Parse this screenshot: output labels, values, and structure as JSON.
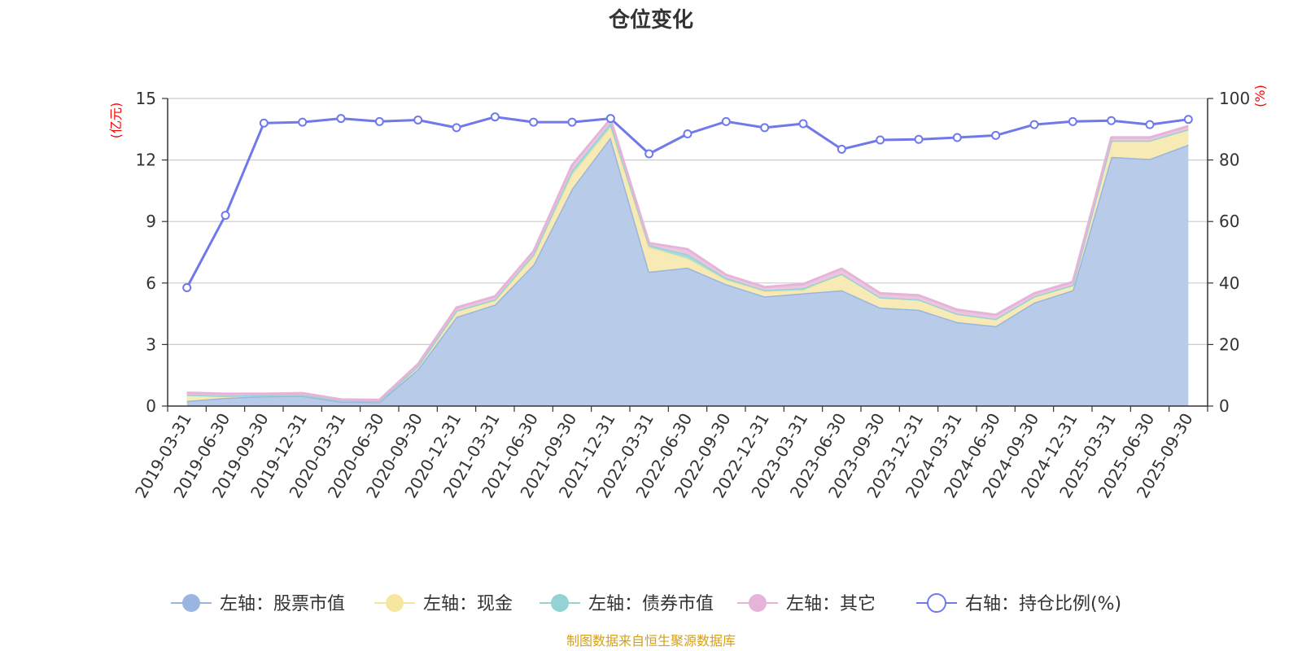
{
  "chart_data": {
    "type": "area",
    "title": "仓位变化",
    "left_axis": {
      "unit": "(亿元)",
      "ylim": [
        0,
        15
      ],
      "ticks": [
        "0",
        "3",
        "6",
        "9",
        "12",
        "15"
      ]
    },
    "right_axis": {
      "unit": "(%)",
      "ylim": [
        0,
        100
      ],
      "ticks": [
        "0",
        "20",
        "40",
        "60",
        "80",
        "100"
      ]
    },
    "grid": true,
    "legend_position": "bottom",
    "x_tick_labels": [
      "2019-03-31",
      "2019-06-30",
      "2019-09-30",
      "2019-12-31",
      "2020-03-31",
      "2020-06-30",
      "2020-09-30",
      "2020-12-31",
      "2021-03-31",
      "2021-06-30",
      "2021-09-30",
      "2021-12-31",
      "2022-03-31",
      "2022-06-30",
      "2022-09-30",
      "2022-12-31",
      "2023-03-31",
      "2023-06-30",
      "2023-09-30",
      "2023-12-31",
      "2024-03-31",
      "2024-06-30",
      "2024-09-30",
      "2024-12-31",
      "2025-03-31",
      "2025-06-30",
      "2025-09-30"
    ],
    "categories": [
      "2019-03-31",
      "2019-06-30",
      "2019-09-30",
      "2019-12-31",
      "2020-03-31",
      "2020-06-30",
      "2020-09-30",
      "2020-12-31",
      "2021-03-31",
      "2021-06-30",
      "2021-09-30",
      "2021-12-31",
      "2022-03-31",
      "2022-06-30",
      "2022-09-30",
      "2022-12-31",
      "2023-03-31",
      "2023-06-30",
      "2023-09-30",
      "2023-12-31",
      "2024-03-31",
      "2024-06-30",
      "2024-09-30",
      "2024-12-31",
      "2025-03-31",
      "2025-06-30",
      "2025-09-30"
    ],
    "series": [
      {
        "name": "左轴：股票市值",
        "axis": "left",
        "stack": true,
        "color": "#9ab5e0",
        "fill": "#b8cbe9",
        "values": [
          0.25,
          0.4,
          0.48,
          0.5,
          0.22,
          0.2,
          1.8,
          4.35,
          4.95,
          6.9,
          10.6,
          13.1,
          6.55,
          6.75,
          5.95,
          5.35,
          5.5,
          5.65,
          4.8,
          4.7,
          4.1,
          3.9,
          5.05,
          5.65,
          12.15,
          12.05,
          12.75
        ]
      },
      {
        "name": "左轴：现金",
        "axis": "left",
        "stack": true,
        "color": "#f6e6a0",
        "fill": "#f7eab4",
        "values": [
          0.3,
          0.1,
          0.05,
          0.05,
          0.05,
          0.05,
          0.15,
          0.3,
          0.2,
          0.4,
          0.7,
          0.5,
          1.2,
          0.45,
          0.2,
          0.25,
          0.15,
          0.8,
          0.5,
          0.5,
          0.4,
          0.35,
          0.3,
          0.25,
          0.8,
          0.9,
          0.75
        ]
      },
      {
        "name": "左轴：债券市值",
        "axis": "left",
        "stack": true,
        "color": "#93d3d4",
        "fill": "#a8dcdc",
        "values": [
          0,
          0,
          0,
          0,
          0,
          0,
          0,
          0,
          0.05,
          0.1,
          0.2,
          0.2,
          0.1,
          0.2,
          0.1,
          0.05,
          0.1,
          0,
          0,
          0,
          0,
          0,
          0,
          0,
          0,
          0,
          0
        ]
      },
      {
        "name": "左轴：其它",
        "axis": "left",
        "stack": true,
        "color": "#e6b4d8",
        "fill": "#ecc6e0",
        "values": [
          0.1,
          0.1,
          0.07,
          0.08,
          0.05,
          0.05,
          0.1,
          0.15,
          0.15,
          0.15,
          0.25,
          0.2,
          0.1,
          0.25,
          0.15,
          0.15,
          0.2,
          0.25,
          0.2,
          0.2,
          0.2,
          0.2,
          0.15,
          0.15,
          0.15,
          0.15,
          0.15
        ]
      },
      {
        "name": "右轴：持仓比例(%)",
        "axis": "right",
        "type": "line",
        "color": "#7079ea",
        "values": [
          38.5,
          62.0,
          92.0,
          92.3,
          93.5,
          92.5,
          93.0,
          90.5,
          94.0,
          92.3,
          92.3,
          93.5,
          82.0,
          88.5,
          92.5,
          90.5,
          91.8,
          83.5,
          86.5,
          86.7,
          87.3,
          88.0,
          91.5,
          92.5,
          92.8,
          91.5,
          93.2
        ]
      }
    ]
  },
  "source_note": "制图数据来自恒生聚源数据库"
}
